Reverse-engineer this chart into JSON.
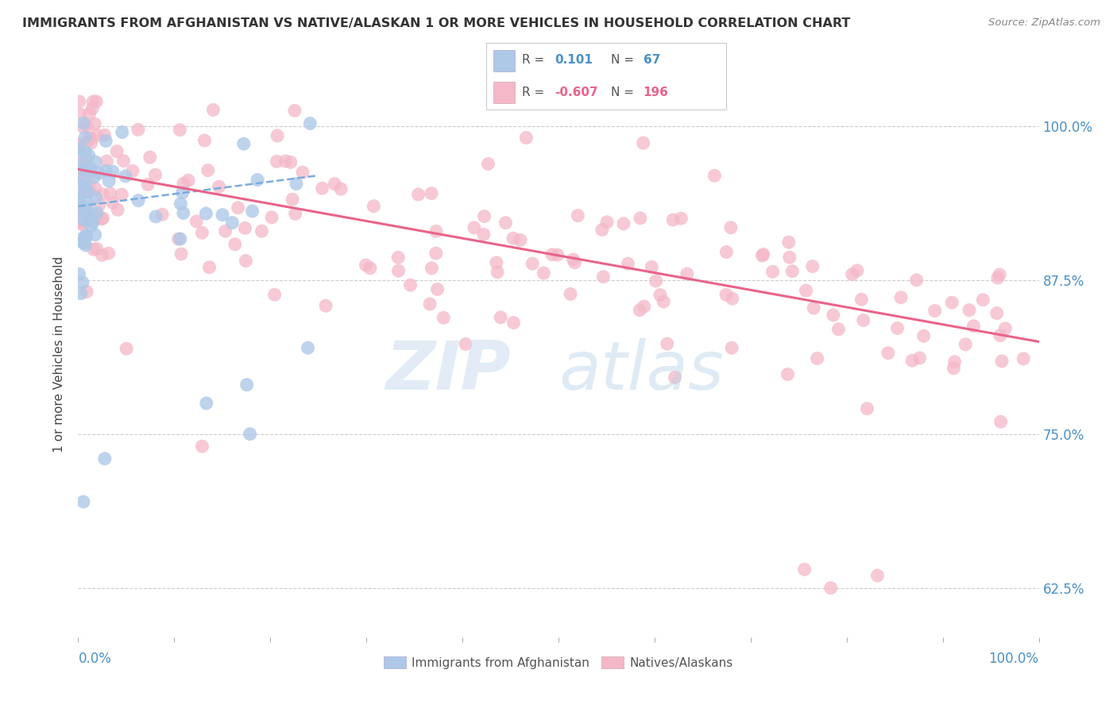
{
  "title": "IMMIGRANTS FROM AFGHANISTAN VS NATIVE/ALASKAN 1 OR MORE VEHICLES IN HOUSEHOLD CORRELATION CHART",
  "source": "Source: ZipAtlas.com",
  "ylabel": "1 or more Vehicles in Household",
  "yticks": [
    0.625,
    0.75,
    0.875,
    1.0
  ],
  "ytick_labels": [
    "62.5%",
    "75.0%",
    "87.5%",
    "100.0%"
  ],
  "xticks": [
    0.0,
    0.1,
    0.2,
    0.3,
    0.4,
    0.5,
    0.6,
    0.7,
    0.8,
    0.9,
    1.0
  ],
  "xmin": 0.0,
  "xmax": 1.0,
  "ymin": 0.585,
  "ymax": 1.045,
  "blue_color": "#aec8e8",
  "pink_color": "#f4b8c8",
  "blue_line_color": "#7aace0",
  "pink_line_color": "#e8648a",
  "blue_line_x": [
    0.0,
    0.25
  ],
  "blue_line_y": [
    0.935,
    0.96
  ],
  "pink_line_x": [
    0.0,
    1.0
  ],
  "pink_line_y": [
    0.965,
    0.825
  ],
  "watermark_zip": "ZIP",
  "watermark_atlas": "atlas",
  "legend_r1": "R =",
  "legend_v1": "0.101",
  "legend_n1_label": "N =",
  "legend_n1": "67",
  "legend_r2": "R = -0.607",
  "legend_n2": "N = 196",
  "legend_blue_label": "Immigrants from Afghanistan",
  "legend_pink_label": "Natives/Alaskans"
}
